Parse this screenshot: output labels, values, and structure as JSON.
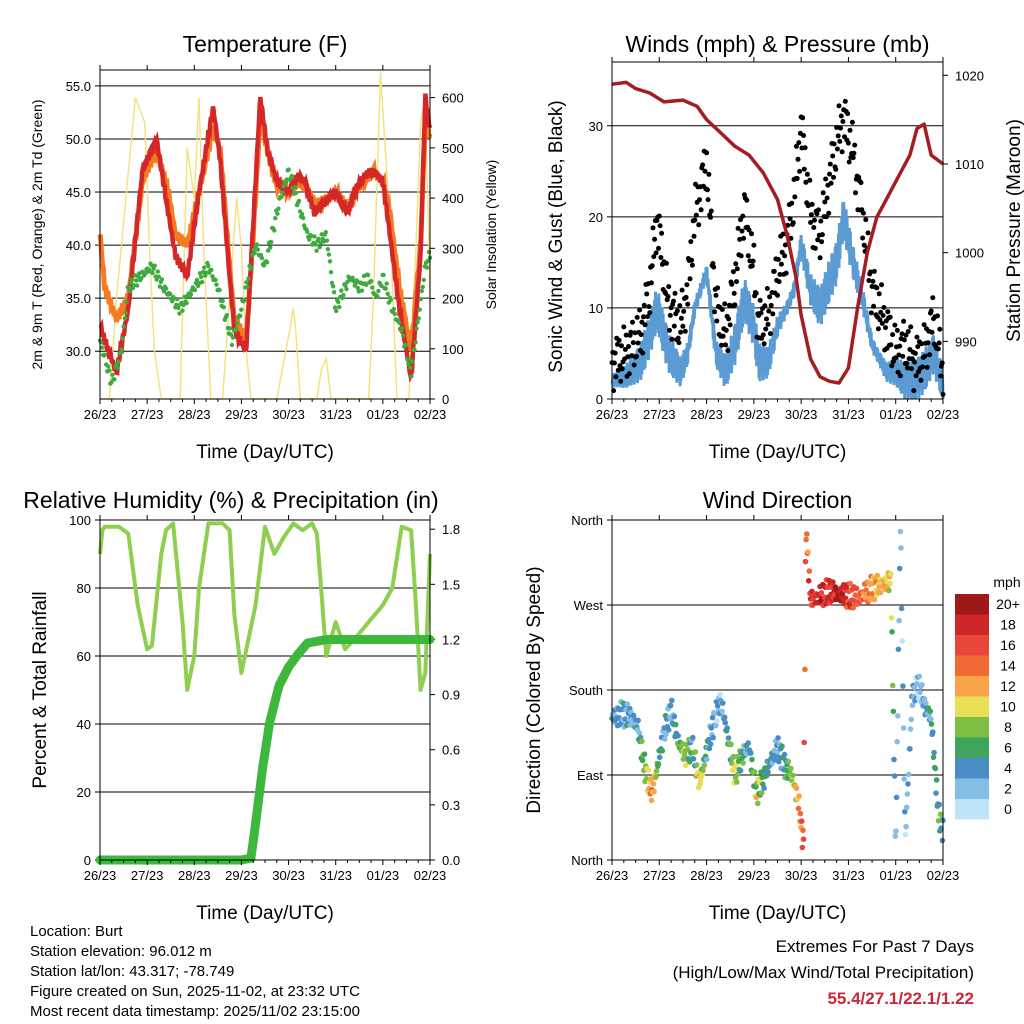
{
  "colors": {
    "temp2m": "#d62728",
    "temp9m": "#f47b20",
    "dewpoint": "#3faa3f",
    "solar": "#f5e07a",
    "gust": "#000000",
    "wind": "#5a9bd4",
    "pressure": "#a31d22",
    "rh": "#8fcf4f",
    "precip": "#3db83d",
    "extremes": "#c8283a"
  },
  "time_ticks": [
    "26/23",
    "27/23",
    "28/23",
    "29/23",
    "30/23",
    "31/23",
    "01/23",
    "02/23"
  ],
  "charts": {
    "temperature": {
      "type": "line",
      "title": "Temperature (F)",
      "xlabel": "Time (Day/UTC)",
      "ylabel": "2m & 9m T (Red, Orange) & 2m Td (Green)",
      "y2label": "Solar Insolation (Yellow)",
      "ylim": [
        25.5,
        56.5
      ],
      "y2lim": [
        0,
        655
      ],
      "yticks": [
        "30.0",
        "35.0",
        "40.0",
        "45.0",
        "50.0",
        "55.0"
      ],
      "ytick_values": [
        30,
        35,
        40,
        45,
        50,
        55
      ],
      "y2ticks": [
        "0",
        "100",
        "200",
        "300",
        "400",
        "500",
        "600"
      ],
      "y2tick_values": [
        0,
        100,
        200,
        300,
        400,
        500,
        600
      ],
      "series": [
        {
          "name": "2m T",
          "x": [
            0,
            0.1,
            0.35,
            0.6,
            0.9,
            1.2,
            1.45,
            1.6,
            1.85,
            2.1,
            2.4,
            2.55,
            2.75,
            2.85,
            3.1,
            3.25,
            3.4,
            3.55,
            3.75,
            4,
            4.2,
            4.35,
            4.55,
            4.75,
            5,
            5.25,
            5.4,
            5.6,
            5.8,
            6,
            6.15,
            6.35,
            6.6,
            6.8,
            6.9,
            7
          ],
          "values": [
            32.5,
            31,
            28,
            34,
            47,
            50,
            43,
            39,
            37,
            45,
            53,
            48,
            37,
            32,
            30,
            42,
            54,
            49,
            46,
            45,
            46.5,
            46,
            43,
            44,
            45,
            43,
            45,
            46.5,
            47,
            46,
            41,
            34,
            27.5,
            39,
            54,
            51
          ]
        },
        {
          "name": "9m T",
          "x": [
            0,
            0.1,
            0.35,
            0.6,
            0.9,
            1.2,
            1.45,
            1.6,
            1.85,
            2.1,
            2.4,
            2.55,
            2.75,
            2.85,
            3.1,
            3.25,
            3.4,
            3.55,
            3.75,
            4,
            4.2,
            4.35,
            4.55,
            4.75,
            5,
            5.25,
            5.4,
            5.6,
            5.8,
            6,
            6.15,
            6.35,
            6.6,
            6.8,
            6.9,
            7
          ],
          "values": [
            41,
            36,
            33,
            35,
            46,
            49,
            45,
            41,
            40,
            45,
            51,
            49,
            38,
            33,
            31,
            41,
            52,
            49,
            45.5,
            45,
            46,
            45.5,
            44,
            44,
            45,
            43.5,
            45,
            46,
            47,
            46,
            43,
            36,
            30,
            40,
            52,
            50
          ]
        },
        {
          "name": "2m Td",
          "x": [
            0,
            0.25,
            0.45,
            0.6,
            0.85,
            1.1,
            1.35,
            1.7,
            2.0,
            2.3,
            2.5,
            2.8,
            3.0,
            3.3,
            3.5,
            3.8,
            4.0,
            4.2,
            4.4,
            4.6,
            4.8,
            5.0,
            5.3,
            5.5,
            5.7,
            5.85,
            6.0,
            6.2,
            6.4,
            6.6,
            6.75,
            6.9,
            7
          ],
          "values": [
            31,
            27,
            30,
            36,
            37,
            38,
            36,
            34,
            36,
            38,
            36,
            31,
            34,
            40,
            38,
            44,
            47,
            44,
            41,
            40,
            41,
            34,
            37,
            36,
            37,
            35,
            37,
            34,
            32,
            28,
            33,
            38,
            39
          ]
        },
        {
          "name": "Solar",
          "x": [
            0,
            0.2,
            0.35,
            0.55,
            0.75,
            0.95,
            1.05,
            1.15,
            1.3,
            1.7,
            1.85,
            2.0,
            2.1,
            2.2,
            2.35,
            2.6,
            2.75,
            2.9,
            3.0,
            3.1,
            3.2,
            3.4,
            3.75,
            4.05,
            4.1,
            4.15,
            4.25,
            4.6,
            4.7,
            4.8,
            4.9,
            5.7,
            5.8,
            5.95,
            6.05,
            6.15,
            6.3,
            6.55,
            6.7,
            6.8,
            6.9,
            7
          ],
          "values": [
            0,
            0,
            200,
            400,
            600,
            550,
            300,
            100,
            0,
            0,
            500,
            400,
            600,
            300,
            0,
            0,
            200,
            400,
            300,
            100,
            0,
            0,
            0,
            150,
            180,
            140,
            0,
            0,
            60,
            80,
            0,
            0,
            200,
            650,
            500,
            350,
            0,
            0,
            300,
            550,
            600,
            200
          ]
        }
      ]
    },
    "winds": {
      "type": "line",
      "title": "Winds (mph) & Pressure (mb)",
      "xlabel": "Time (Day/UTC)",
      "ylabel": "Sonic Wind & Gust (Blue, Black)",
      "y2label": "Station Pressure (Maroon)",
      "ylim": [
        0,
        37
      ],
      "y2lim": [
        983.5,
        1021.5
      ],
      "yticks": [
        "0",
        "10",
        "20",
        "30"
      ],
      "ytick_values": [
        0,
        10,
        20,
        30
      ],
      "y2ticks": [
        "990",
        "1000",
        "1010",
        "1020"
      ],
      "y2tick_values": [
        990,
        1000,
        1010,
        1020
      ],
      "series": [
        {
          "name": "Gust",
          "x": [
            0,
            0.3,
            0.6,
            0.8,
            0.95,
            1.2,
            1.45,
            1.6,
            1.75,
            2.0,
            2.2,
            2.4,
            2.6,
            2.8,
            3.0,
            3.1,
            3.3,
            3.5,
            3.7,
            3.85,
            4.0,
            4.2,
            4.4,
            4.6,
            4.75,
            4.9,
            5.1,
            5.3,
            5.5,
            5.8,
            6.0,
            6.2,
            6.4,
            6.6,
            6.8,
            7
          ],
          "values": [
            4,
            5,
            7,
            12,
            20,
            10,
            8,
            12,
            20,
            26,
            10,
            7,
            13,
            21,
            14,
            8,
            9,
            14,
            17,
            22,
            30,
            20,
            18,
            24,
            28,
            31,
            27,
            20,
            12,
            8,
            5,
            6,
            4,
            5,
            9,
            3
          ]
        },
        {
          "name": "Wind",
          "x": [
            0,
            0.3,
            0.6,
            0.8,
            0.95,
            1.2,
            1.45,
            1.6,
            1.75,
            2.0,
            2.2,
            2.4,
            2.6,
            2.8,
            3.0,
            3.1,
            3.3,
            3.5,
            3.7,
            3.85,
            4.0,
            4.2,
            4.4,
            4.6,
            4.75,
            4.9,
            5.1,
            5.3,
            5.5,
            5.8,
            6.0,
            6.2,
            6.4,
            6.6,
            6.8,
            7
          ],
          "values": [
            2,
            2.5,
            4,
            7,
            10,
            5,
            3,
            5,
            10,
            14,
            5,
            3,
            6,
            11,
            8,
            4,
            4,
            8,
            10,
            12,
            17,
            12,
            10,
            13,
            15,
            20,
            15,
            11,
            6,
            3,
            3,
            2,
            2,
            3,
            5,
            1.5
          ]
        },
        {
          "name": "Station Pressure",
          "x": [
            0,
            0.3,
            0.5,
            0.8,
            1.1,
            1.5,
            1.8,
            2.0,
            2.3,
            2.6,
            2.9,
            3.2,
            3.5,
            3.7,
            3.9,
            4.0,
            4.2,
            4.4,
            4.6,
            4.8,
            5.0,
            5.2,
            5.4,
            5.6,
            5.8,
            6.0,
            6.3,
            6.45,
            6.6,
            6.75,
            7
          ],
          "values": [
            1019,
            1019.2,
            1018.5,
            1018,
            1017,
            1017.2,
            1016.5,
            1015,
            1013.5,
            1012,
            1011,
            1009,
            1006,
            1002,
            997,
            993,
            988,
            986,
            985.5,
            985.3,
            987,
            994,
            1000,
            1004,
            1006,
            1008,
            1011,
            1014,
            1014.5,
            1011,
            1010
          ]
        }
      ]
    },
    "humidity": {
      "type": "line",
      "title": "Relative Humidity (%) & Precipitation (in)",
      "xlabel": "Time (Day/UTC)",
      "ylabel": "Percent & Total Rainfall",
      "ylim": [
        0,
        100
      ],
      "y2lim": [
        0,
        1.85
      ],
      "yticks": [
        "0",
        "20",
        "40",
        "60",
        "80",
        "100"
      ],
      "ytick_values": [
        0,
        20,
        40,
        60,
        80,
        100
      ],
      "y2ticks": [
        "0.0",
        "0.3",
        "0.6",
        "0.9",
        "1.2",
        "1.5",
        "1.8"
      ],
      "y2tick_values": [
        0,
        0.3,
        0.6,
        0.9,
        1.2,
        1.5,
        1.8
      ],
      "series": [
        {
          "name": "RH",
          "x": [
            0,
            0.05,
            0.1,
            0.4,
            0.6,
            0.8,
            1.0,
            1.1,
            1.3,
            1.4,
            1.55,
            1.75,
            1.85,
            2.0,
            2.1,
            2.3,
            2.6,
            2.75,
            2.85,
            3.0,
            3.15,
            3.3,
            3.5,
            3.7,
            3.9,
            4.1,
            4.3,
            4.5,
            4.6,
            4.8,
            5.0,
            5.2,
            5.4,
            5.7,
            6.0,
            6.2,
            6.4,
            6.6,
            6.7,
            6.8,
            6.9,
            7
          ],
          "values": [
            90,
            97,
            98,
            98,
            96,
            75,
            62,
            63,
            90,
            97,
            99,
            70,
            50,
            60,
            80,
            99,
            99,
            97,
            72,
            55,
            65,
            75,
            98,
            90,
            95,
            99,
            97,
            99,
            96,
            60,
            70,
            62,
            65,
            70,
            75,
            80,
            98,
            97,
            75,
            50,
            55,
            90
          ]
        },
        {
          "name": "Total Rainfall",
          "x": [
            0,
            3.0,
            3.2,
            3.3,
            3.45,
            3.6,
            3.8,
            4.0,
            4.2,
            4.4,
            4.6,
            4.8,
            7
          ],
          "values": [
            0,
            0,
            0.01,
            0.2,
            0.5,
            0.75,
            0.95,
            1.05,
            1.12,
            1.18,
            1.19,
            1.2,
            1.2
          ]
        }
      ]
    },
    "direction": {
      "type": "scatter",
      "title": "Wind Direction",
      "xlabel": "Time (Day/UTC)",
      "ylabel": "Direction (Colored By Speed)",
      "ylim": [
        0,
        360
      ],
      "yticks": [
        "North",
        "East",
        "South",
        "West",
        "North"
      ],
      "ytick_values": [
        0,
        90,
        180,
        270,
        360
      ],
      "x": [
        0,
        0.2,
        0.4,
        0.55,
        0.7,
        0.85,
        1.0,
        1.1,
        1.25,
        1.4,
        1.55,
        1.7,
        1.85,
        2.0,
        2.15,
        2.3,
        2.45,
        2.6,
        2.75,
        2.9,
        3.05,
        3.2,
        3.35,
        3.5,
        3.65,
        3.8,
        3.95,
        4.05,
        4.1,
        4.2,
        4.4,
        4.6,
        4.8,
        5.0,
        5.2,
        5.4,
        5.6,
        5.75,
        5.9,
        6.0,
        6.1,
        6.2,
        6.35,
        6.5,
        6.6,
        6.75,
        6.9,
        7
      ],
      "direction": [
        150,
        155,
        152,
        140,
        95,
        70,
        110,
        135,
        160,
        125,
        110,
        120,
        80,
        115,
        145,
        170,
        130,
        90,
        110,
        120,
        70,
        85,
        105,
        120,
        100,
        90,
        60,
        15,
        355,
        275,
        280,
        285,
        282,
        280,
        278,
        285,
        290,
        292,
        296,
        10,
        360,
        20,
        175,
        185,
        165,
        150,
        50,
        30
      ],
      "speed": [
        3,
        4,
        3,
        4,
        8,
        13,
        5,
        4,
        3,
        6,
        9,
        4,
        11,
        4,
        3,
        2,
        5,
        10,
        5,
        4,
        9,
        6,
        4,
        3,
        5,
        8,
        12,
        16,
        14,
        16,
        18,
        17,
        20,
        16,
        15,
        13,
        11,
        12,
        10,
        2,
        3,
        2,
        3,
        2,
        3,
        4,
        6,
        5
      ],
      "legend": {
        "title": "mph",
        "labels": [
          "20+",
          "18",
          "16",
          "14",
          "12",
          "10",
          "8",
          "6",
          "4",
          "2",
          "0"
        ],
        "colors": [
          "#9e1a1a",
          "#cd2626",
          "#e8453c",
          "#f06a34",
          "#f8a54a",
          "#e7df56",
          "#7cbf42",
          "#3fa45b",
          "#4a8cc6",
          "#86bde5",
          "#bfe5f8"
        ]
      }
    }
  },
  "info": {
    "location": "Location: Burt",
    "elevation": "Station elevation: 96.012 m",
    "latlon": "Station lat/lon: 43.317; -78.749",
    "created": "Figure created on Sun, 2025-11-02, at 23:32 UTC",
    "recent": "Most recent data timestamp: 2025/11/02 23:15:00"
  },
  "extremes": {
    "line1": "Extremes For Past 7 Days",
    "line2": "(High/Low/Max Wind/Total Precipitation)",
    "values": "55.4/27.1/22.1/1.22"
  }
}
